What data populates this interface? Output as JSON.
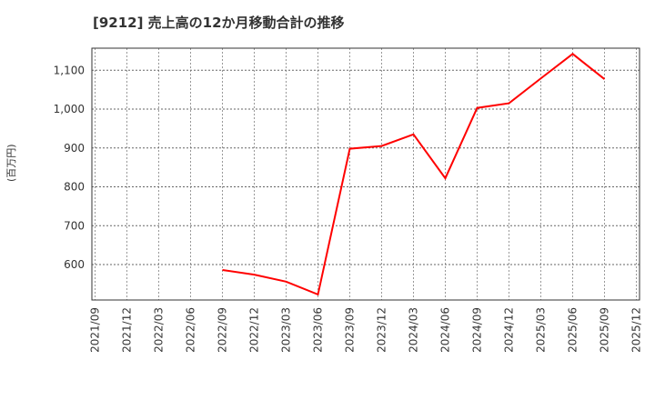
{
  "header": {
    "title": "[9212]  売上高の12か月移動合計の推移"
  },
  "axis": {
    "ylabel": "(百万円)"
  },
  "colors": {
    "line": "#ff0000",
    "grid": "#999999",
    "axis": "#333333"
  },
  "chart_data": {
    "type": "line",
    "title": "[9212]  売上高の12か月移動合計の推移",
    "xlabel": "",
    "ylabel": "(百万円)",
    "categories": [
      "2021/09",
      "2021/12",
      "2022/03",
      "2022/06",
      "2022/09",
      "2022/12",
      "2023/03",
      "2023/06",
      "2023/09",
      "2023/12",
      "2024/03",
      "2024/06",
      "2024/09",
      "2024/12",
      "2025/03",
      "2025/06",
      "2025/09",
      "2025/12"
    ],
    "series": [
      {
        "name": "売上高の12か月移動合計",
        "values": [
          null,
          null,
          null,
          null,
          586,
          574,
          556,
          523,
          898,
          905,
          935,
          822,
          1003,
          1015,
          1079,
          1142,
          1077,
          null
        ]
      }
    ],
    "yticks": [
      600,
      700,
      800,
      900,
      1000,
      1100
    ],
    "ytick_labels": [
      "600",
      "700",
      "800",
      "900",
      "1,000",
      "1,100"
    ],
    "ylim": [
      505,
      1160
    ],
    "grid": true,
    "legend": "none"
  }
}
